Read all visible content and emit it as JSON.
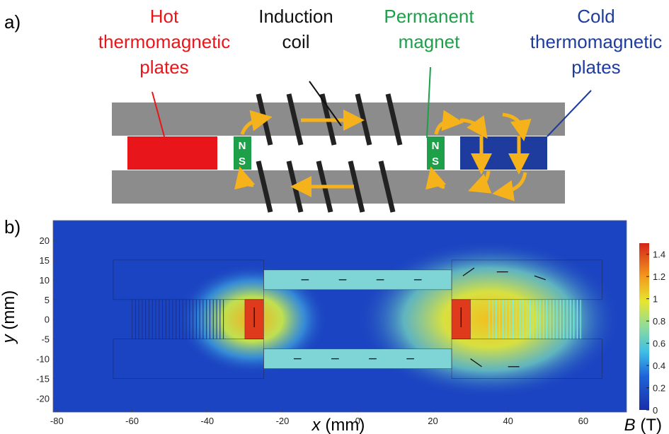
{
  "panel_a": {
    "label": "a)",
    "hot": [
      "Hot",
      "thermomagnetic",
      "plates"
    ],
    "coil": [
      "Induction",
      "coil"
    ],
    "magnet": [
      "Permanent",
      "magnet"
    ],
    "cold": [
      "Cold",
      "thermomagnetic",
      "plates"
    ],
    "poles": [
      "N",
      "S"
    ]
  },
  "panel_b": {
    "label": "b)",
    "xlim": [
      -81,
      71.5
    ],
    "ylim": [
      -23.5,
      25
    ],
    "xticks": [
      -80,
      -60,
      -40,
      -20,
      0,
      20,
      40,
      60
    ],
    "yticks": [
      -20,
      -15,
      -10,
      -5,
      0,
      5,
      10,
      15,
      20
    ],
    "x_label": {
      "var": "x",
      "unit": "(mm)"
    },
    "y_label": {
      "var": "y",
      "unit": "(mm)"
    },
    "colorbar": {
      "var": "B",
      "unit": "(T)",
      "lim": [
        0,
        1.5
      ],
      "ticks": [
        0,
        0.2,
        0.4,
        0.6,
        0.8,
        1,
        1.2,
        1.4
      ]
    }
  }
}
